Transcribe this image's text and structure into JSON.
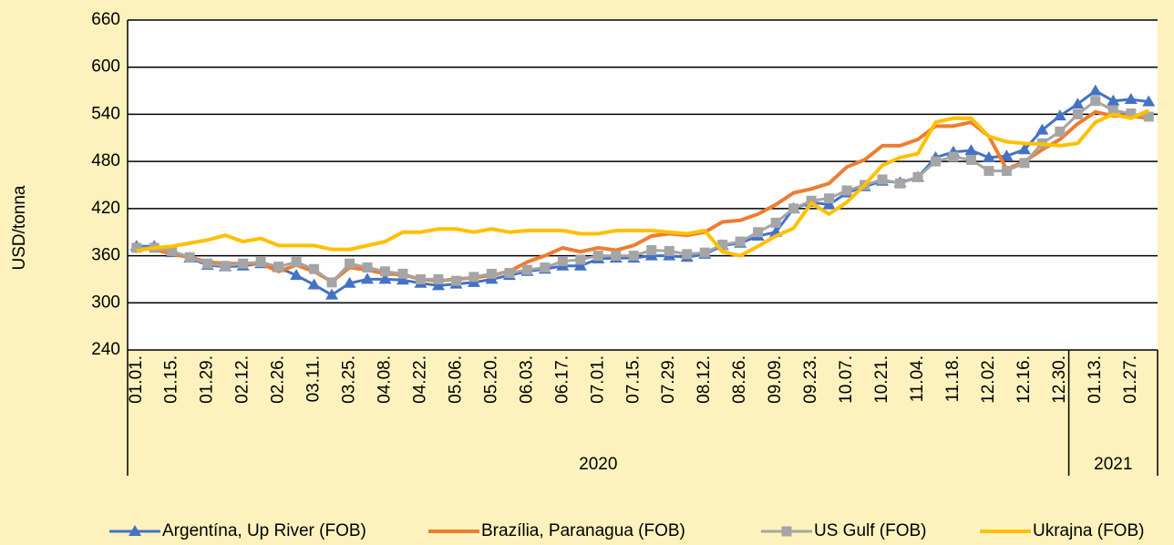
{
  "chart_data": {
    "type": "line",
    "y_label": "USD/tonna",
    "categories": [
      "01.01.",
      null,
      "01.15.",
      null,
      "01.29.",
      null,
      "02.12.",
      null,
      "02.26.",
      null,
      "03.11.",
      null,
      "03.25.",
      null,
      "04.08.",
      null,
      "04.22.",
      null,
      "05.06.",
      null,
      "05.20.",
      null,
      "06.03.",
      null,
      "06.17.",
      null,
      "07.01.",
      null,
      "07.15.",
      null,
      "07.29.",
      null,
      "08.12.",
      null,
      "08.26.",
      null,
      "09.09.",
      null,
      "09.23.",
      null,
      "10.07.",
      null,
      "10.21.",
      null,
      "11.04.",
      null,
      "11.18.",
      null,
      "12.02.",
      null,
      "12.16.",
      null,
      "12.30.",
      null,
      "01.13.",
      null,
      "01.27.",
      null
    ],
    "x_groups": [
      {
        "label": "2020",
        "from": 0,
        "to": 52
      },
      {
        "label": "2021",
        "from": 53,
        "to": 57
      }
    ],
    "ylim": [
      240,
      660
    ],
    "yticks": [
      240,
      300,
      360,
      420,
      480,
      540,
      600,
      660
    ],
    "grid": true,
    "legend": "bottom",
    "series": [
      {
        "name": "Argentína, Up River (FOB)",
        "color": "#4472c4",
        "marker": "triangle",
        "values": [
          372,
          372,
          364,
          357,
          348,
          346,
          347,
          350,
          345,
          335,
          323,
          310,
          325,
          330,
          330,
          329,
          325,
          322,
          324,
          326,
          330,
          335,
          340,
          343,
          347,
          347,
          356,
          357,
          357,
          360,
          360,
          358,
          362,
          373,
          376,
          385,
          390,
          420,
          428,
          425,
          440,
          448,
          455,
          453,
          460,
          485,
          492,
          494,
          485,
          487,
          495,
          520,
          538,
          553,
          570,
          557,
          559,
          556
        ]
      },
      {
        "name": "Brazília, Paranagua (FOB)",
        "color": "#ed7d31",
        "marker": null,
        "values": [
          370,
          368,
          362,
          358,
          352,
          350,
          350,
          350,
          340,
          348,
          340,
          327,
          345,
          342,
          337,
          336,
          330,
          328,
          330,
          332,
          335,
          340,
          352,
          360,
          370,
          365,
          370,
          367,
          373,
          385,
          388,
          386,
          390,
          403,
          405,
          413,
          425,
          440,
          445,
          452,
          473,
          482,
          500,
          500,
          508,
          525,
          525,
          530,
          512,
          470,
          480,
          495,
          508,
          528,
          543,
          538,
          538,
          535
        ]
      },
      {
        "name": "US Gulf (FOB)",
        "color": "#a5a5a5",
        "marker": "square",
        "values": [
          370,
          370,
          366,
          358,
          350,
          347,
          350,
          352,
          346,
          352,
          343,
          326,
          350,
          345,
          340,
          337,
          330,
          330,
          328,
          333,
          337,
          338,
          342,
          345,
          353,
          355,
          360,
          360,
          360,
          367,
          366,
          362,
          364,
          374,
          378,
          390,
          402,
          420,
          430,
          433,
          443,
          450,
          457,
          452,
          460,
          480,
          486,
          482,
          468,
          468,
          478,
          503,
          518,
          540,
          557,
          545,
          541,
          537
        ]
      },
      {
        "name": "Ukrajna (FOB)",
        "color": "#ffc000",
        "marker": null,
        "values": [
          366,
          370,
          372,
          376,
          380,
          386,
          378,
          382,
          373,
          373,
          373,
          368,
          368,
          373,
          378,
          390,
          390,
          394,
          394,
          390,
          394,
          390,
          392,
          392,
          392,
          388,
          388,
          392,
          392,
          392,
          390,
          388,
          392,
          365,
          360,
          372,
          385,
          395,
          427,
          413,
          428,
          450,
          475,
          485,
          490,
          530,
          535,
          535,
          512,
          505,
          503,
          502,
          500,
          503,
          530,
          540,
          535,
          545
        ]
      }
    ]
  }
}
